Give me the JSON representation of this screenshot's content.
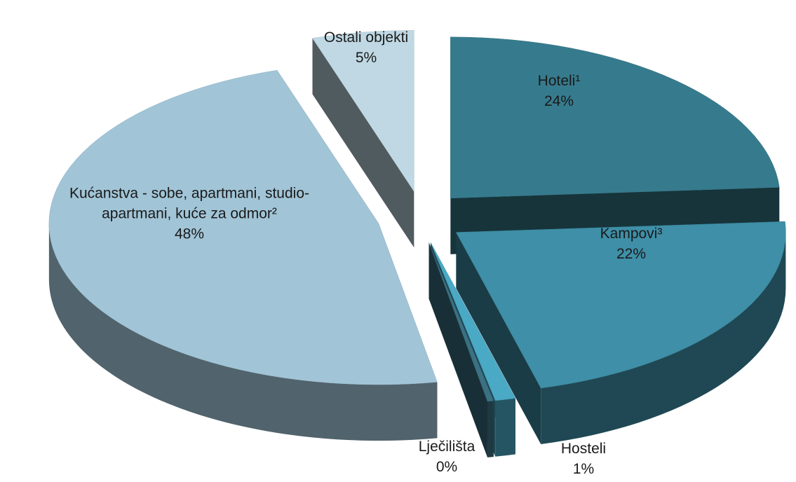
{
  "chart_data": {
    "type": "pie3d",
    "categories": [
      "Hoteli¹",
      "Kampovi³",
      "Hosteli",
      "Lječilišta",
      "Kućanstva - sobe, apartmani, studio-apartmani, kuće za odmor²",
      "Ostali objekti"
    ],
    "values": [
      24,
      22,
      1,
      0.3,
      48,
      5
    ],
    "value_labels": [
      "24%",
      "22%",
      "1%",
      "0%",
      "48%",
      "5%"
    ],
    "colors": [
      "#367b8d",
      "#3e8fa7",
      "#4aa9c5",
      "#3b7182",
      "#a1c5d7",
      "#bfd8e3"
    ]
  }
}
